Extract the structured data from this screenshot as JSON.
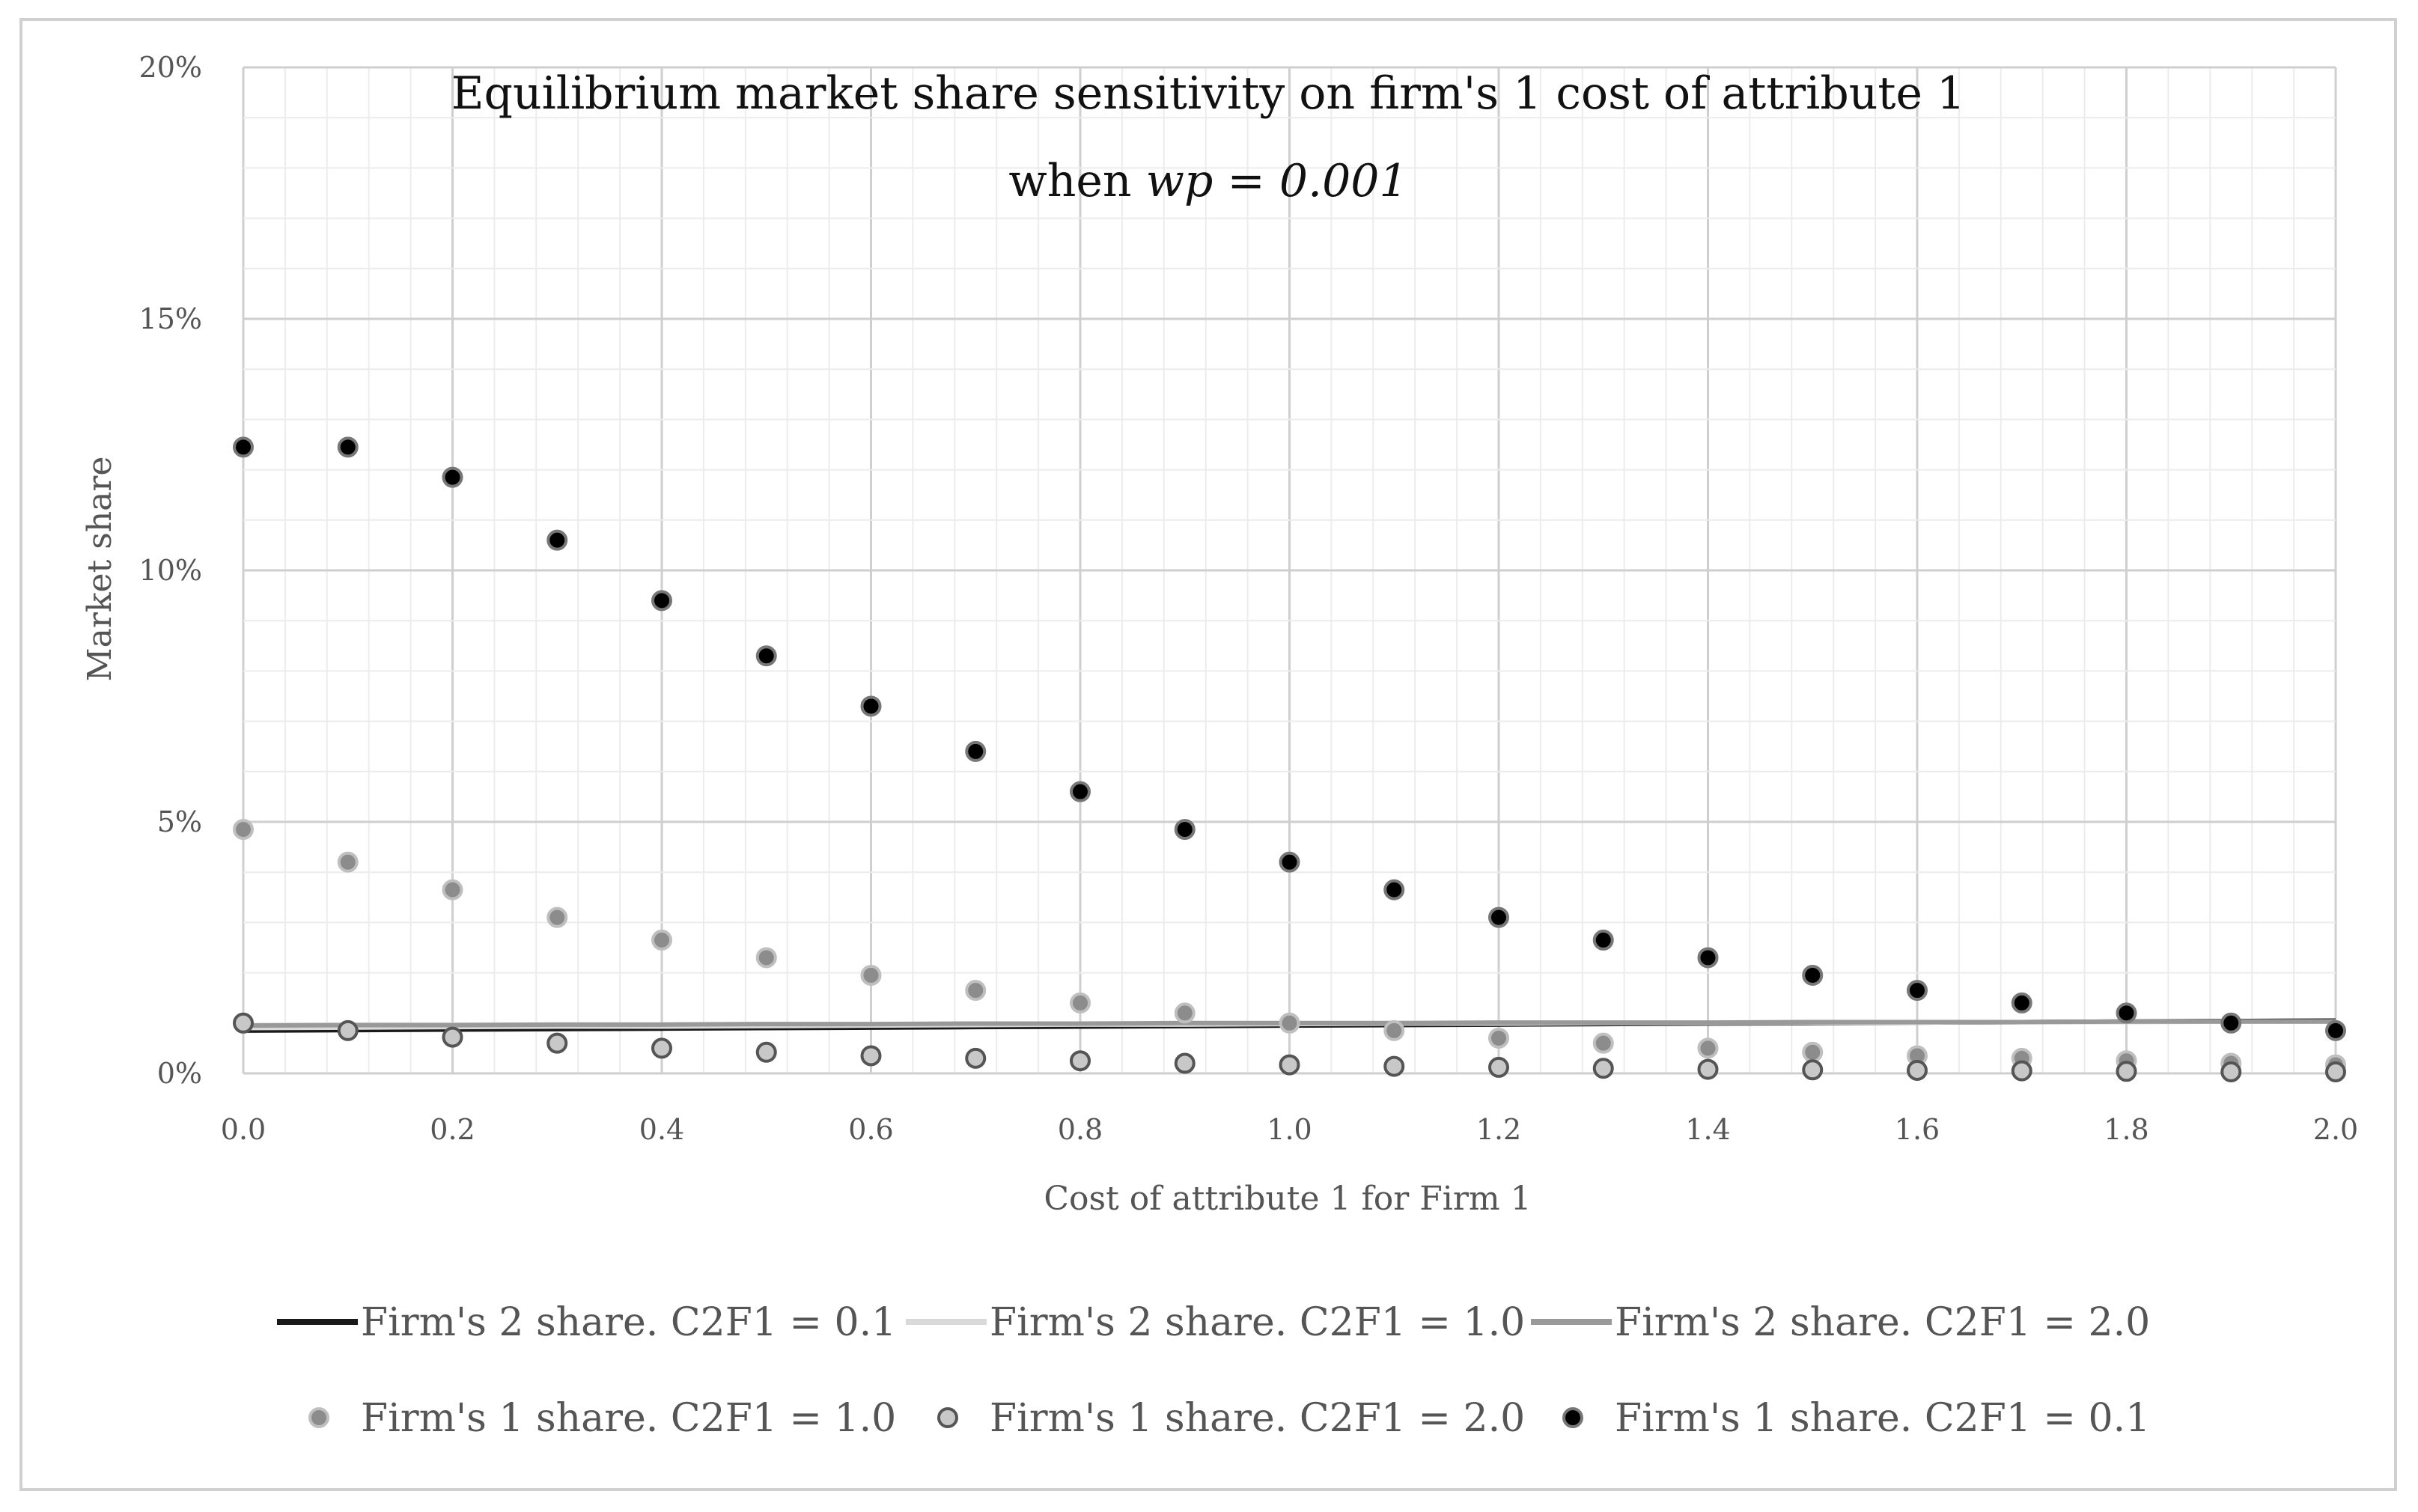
{
  "chart_data": {
    "type": "scatter",
    "title_line1": "Equilibrium market share sensitivity on firm's 1 cost of attribute 1",
    "title_line2_prefix": "when ",
    "title_line2_math": "wp = 0.001",
    "xlabel": "Cost of attribute 1 for Firm 1",
    "ylabel": "Market share",
    "xlim": [
      0,
      2
    ],
    "ylim": [
      0,
      20
    ],
    "grid": true,
    "legend_position": "bottom",
    "x_ticks": [
      0.0,
      0.2,
      0.4,
      0.6,
      0.8,
      1.0,
      1.2,
      1.4,
      1.6,
      1.8,
      2.0
    ],
    "x_tick_labels": [
      "0.0",
      "0.2",
      "0.4",
      "0.6",
      "0.8",
      "1.0",
      "1.2",
      "1.4",
      "1.6",
      "1.8",
      "2.0"
    ],
    "y_ticks": [
      0,
      5,
      10,
      15,
      20
    ],
    "y_tick_labels": [
      "0%",
      "5%",
      "10%",
      "15%",
      "20%"
    ],
    "x": [
      0.0,
      0.1,
      0.2,
      0.3,
      0.4,
      0.5,
      0.6,
      0.7,
      0.8,
      0.9,
      1.0,
      1.1,
      1.2,
      1.3,
      1.4,
      1.5,
      1.6,
      1.7,
      1.8,
      1.9,
      2.0
    ],
    "lines": [
      {
        "name": "Firm's 2 share. C2F1 = 0.1",
        "color": "#1a1a1a",
        "values": [
          0.85,
          0.86,
          0.87,
          0.88,
          0.89,
          0.9,
          0.91,
          0.92,
          0.93,
          0.94,
          0.95,
          0.96,
          0.97,
          0.98,
          0.99,
          1.0,
          1.01,
          1.02,
          1.03,
          1.04,
          1.05
        ]
      },
      {
        "name": "Firm's 2 share. C2F1 = 1.0",
        "color": "#d9d9d9",
        "values": [
          0.9,
          0.91,
          0.92,
          0.93,
          0.93,
          0.94,
          0.95,
          0.96,
          0.97,
          0.97,
          0.98,
          0.99,
          0.99,
          1.0,
          1.0,
          1.01,
          1.01,
          1.02,
          1.02,
          1.03,
          1.03
        ]
      },
      {
        "name": "Firm's 2 share. C2F1 = 2.0",
        "color": "#999999",
        "values": [
          0.95,
          0.96,
          0.96,
          0.97,
          0.97,
          0.98,
          0.98,
          0.99,
          0.99,
          1.0,
          1.0,
          1.0,
          1.01,
          1.01,
          1.01,
          1.02,
          1.02,
          1.02,
          1.03,
          1.03,
          1.03
        ]
      }
    ],
    "points": [
      {
        "name": "Firm's 1 share. C2F1 = 1.0",
        "fill": "#8c8c8c",
        "stroke": "#bfbfbf",
        "values": [
          4.85,
          4.2,
          3.65,
          3.1,
          2.65,
          2.3,
          1.95,
          1.65,
          1.4,
          1.2,
          1.0,
          0.85,
          0.7,
          0.6,
          0.5,
          0.42,
          0.35,
          0.3,
          0.25,
          0.2,
          0.17
        ]
      },
      {
        "name": "Firm's 1 share. C2F1 = 2.0",
        "fill": "#c8c8c8",
        "stroke": "#555555",
        "values": [
          1.0,
          0.85,
          0.72,
          0.6,
          0.5,
          0.42,
          0.35,
          0.3,
          0.25,
          0.2,
          0.17,
          0.14,
          0.12,
          0.1,
          0.08,
          0.07,
          0.06,
          0.05,
          0.04,
          0.03,
          0.03
        ]
      },
      {
        "name": "Firm's 1 share. C2F1 = 0.1",
        "fill": "#000000",
        "stroke": "#777777",
        "values": [
          12.45,
          12.45,
          11.85,
          10.6,
          9.4,
          8.3,
          7.3,
          6.4,
          5.6,
          4.85,
          4.2,
          3.65,
          3.1,
          2.65,
          2.3,
          1.95,
          1.65,
          1.4,
          1.2,
          1.0,
          0.85
        ]
      }
    ],
    "legend_rows": [
      [
        "Firm's 2 share. C2F1 = 0.1",
        "Firm's 2 share. C2F1 = 1.0",
        "Firm's 2 share. C2F1 = 2.0"
      ],
      [
        "Firm's 1 share. C2F1 = 1.0",
        "Firm's 1 share. C2F1 = 2.0",
        "Firm's 1 share. C2F1 = 0.1"
      ]
    ]
  }
}
